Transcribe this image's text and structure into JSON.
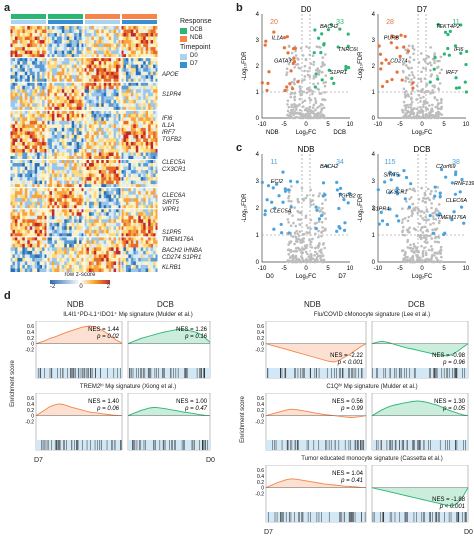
{
  "panel_a": {
    "label": "a",
    "genes": [
      "APOE",
      "S1PR4",
      "IFI6",
      "IL1A",
      "IRF7",
      "TGFB2",
      "CLEC5A",
      "CX3CR1",
      "CLEC6A",
      "SIRT5",
      "VIPR1",
      "S1PR5",
      "TMEM176A",
      "BACH2 IHNBA",
      "CD274 S1PR1",
      "KLRB1"
    ],
    "legend": {
      "response_title": "Response",
      "response_items": [
        {
          "label": "DCB",
          "color": "#2bb673"
        },
        {
          "label": "NDB",
          "color": "#f58549"
        }
      ],
      "timepoint_title": "Timepoint",
      "timepoint_items": [
        {
          "label": "D0",
          "color": "#a9d3ee"
        },
        {
          "label": "D7",
          "color": "#3a8fd0"
        }
      ],
      "zscore_title": "row z-score",
      "zscore_ticks": [
        "-2",
        "0",
        "2"
      ]
    }
  },
  "panel_b": {
    "label": "b",
    "plots": [
      {
        "title": "D0",
        "left_count": "20",
        "right_count": "33",
        "left_color": "#e8703a",
        "right_color": "#2bb673",
        "genes": [
          "BACH2",
          "IL1A",
          "TNRC6C-AS1",
          "GATA3",
          "S1PR1"
        ],
        "xlabel": "Log₂FC",
        "ylabel": "-Log₁₀FDR",
        "xticks": [
          "-10",
          "-5",
          "0",
          "5",
          "10"
        ],
        "yticks": [
          "0",
          "1",
          "2",
          "3",
          "4"
        ],
        "left_arrow": "NDB",
        "right_arrow": "DCB"
      },
      {
        "title": "D7",
        "left_count": "28",
        "right_count": "11",
        "left_color": "#e8703a",
        "right_color": "#2bb673",
        "genes": [
          "TEKT4P2",
          "PURB",
          "IFI6",
          "CD274",
          "IRF7"
        ],
        "xlabel": "Log₂FC",
        "ylabel": "-Log₁₀FDR",
        "xticks": [
          "-10",
          "-5",
          "0",
          "5",
          "10"
        ],
        "yticks": [
          "0",
          "1",
          "2",
          "3",
          "4"
        ]
      }
    ]
  },
  "panel_c": {
    "label": "c",
    "plots": [
      {
        "title": "NDB",
        "left_count": "11",
        "right_count": "34",
        "color": "#4aa3df",
        "genes": [
          "BACH2",
          "ECI2",
          "TGFB2",
          "CLEC5A"
        ],
        "xlabel": "Log₂FC",
        "ylabel": "-Log₁₀FDR",
        "xticks": [
          "-10",
          "-5",
          "0",
          "5",
          "10"
        ],
        "yticks": [
          "0",
          "1",
          "2",
          "3",
          "4"
        ],
        "left_arrow": "D0",
        "right_arrow": "D7"
      },
      {
        "title": "DCB",
        "left_count": "115",
        "right_count": "38",
        "color": "#4aa3df",
        "genes": [
          "C2orf69",
          "SIRT5",
          "RNF139-AS1",
          "CX3CR1",
          "CLEC6A",
          "S1PR4",
          "TMEM176A"
        ],
        "xlabel": "Log₂FC",
        "ylabel": "-Log₁₀FDR",
        "xticks": [
          "-10",
          "-5",
          "0",
          "5",
          "10"
        ],
        "yticks": [
          "0",
          "1",
          "2",
          "3",
          "4"
        ]
      }
    ]
  },
  "panel_d": {
    "label": "d",
    "ylabel": "Enrichment score",
    "x_left": "D7",
    "x_right": "D0",
    "left": {
      "col_titles": [
        "NDB",
        "DCB"
      ],
      "rows": [
        {
          "title": "IL4I1⁺PD-L1⁺IDO1⁺ Mφ signature (Mulder et al.)",
          "plots": [
            {
              "nes": "NES = 1.44",
              "p": "p = 0.02",
              "color": "#f58549",
              "es": [
                0,
                0.05,
                0.1,
                0.18,
                0.22,
                0.28,
                0.34,
                0.4,
                0.45,
                0.5,
                0.55,
                0.58,
                0.6,
                0.57,
                0.5,
                0.42,
                0.32,
                0.2,
                0.1,
                0.02
              ]
            },
            {
              "nes": "NES = 1.26",
              "p": "p = 0.16",
              "color": "#2bb673",
              "es": [
                0,
                0.06,
                0.12,
                0.18,
                0.22,
                0.26,
                0.3,
                0.34,
                0.38,
                0.41,
                0.44,
                0.47,
                0.5,
                0.48,
                0.45,
                0.42,
                0.38,
                0.3,
                0.18,
                0.05
              ]
            }
          ]
        },
        {
          "title": "TREM2ʰⁱ Mφ signature (Xiong et al.)",
          "plots": [
            {
              "nes": "NES = 1.40",
              "p": "p = 0.06",
              "color": "#f58549",
              "es": [
                0,
                0.1,
                0.2,
                0.3,
                0.36,
                0.4,
                0.38,
                0.33,
                0.28,
                0.24,
                0.2,
                0.16,
                0.12,
                0.1,
                0.08,
                0.06,
                0.04,
                0.02,
                0.01,
                0
              ]
            },
            {
              "nes": "NES = 1.00",
              "p": "p = 0.47",
              "color": "#2bb673",
              "es": [
                0,
                0.06,
                0.12,
                0.18,
                0.22,
                0.26,
                0.28,
                0.27,
                0.25,
                0.23,
                0.2,
                0.18,
                0.15,
                0.12,
                0.1,
                0.08,
                0.05,
                0.03,
                0.01,
                0
              ]
            }
          ]
        }
      ]
    },
    "right": {
      "col_titles": [
        "NDB",
        "DCB"
      ],
      "rows": [
        {
          "title": "Flu/COVID cMonocyte signature (Lee et al.)",
          "plots": [
            {
              "nes": "NES = -2.22",
              "p": "p < 0.001",
              "color": "#f58549",
              "es": [
                0,
                -0.05,
                -0.1,
                -0.15,
                -0.2,
                -0.25,
                -0.3,
                -0.35,
                -0.4,
                -0.45,
                -0.5,
                -0.55,
                -0.6,
                -0.62,
                -0.55,
                -0.45,
                -0.35,
                -0.22,
                -0.1,
                0
              ]
            },
            {
              "nes": "NES = -0.98",
              "p": "p = 0.96",
              "color": "#2bb673",
              "es": [
                0,
                0.05,
                0.08,
                0.05,
                0,
                -0.05,
                -0.1,
                -0.15,
                -0.18,
                -0.22,
                -0.26,
                -0.3,
                -0.34,
                -0.38,
                -0.4,
                -0.42,
                -0.35,
                -0.25,
                -0.12,
                0
              ]
            }
          ]
        },
        {
          "title": "C1Qʰⁱ Mφ signature (Mulder et al.)",
          "plots": [
            {
              "nes": "NES = 0.56",
              "p": "p = 0.99",
              "color": "#f58549",
              "es": [
                0,
                0.05,
                0.1,
                0.15,
                0.2,
                0.22,
                0.2,
                0.17,
                0.14,
                0.1,
                0.07,
                0.04,
                0.02,
                0,
                -0.02,
                -0.04,
                -0.06,
                -0.05,
                -0.03,
                0
              ]
            },
            {
              "nes": "NES = 1.30",
              "p": "p = 0.05",
              "color": "#2bb673",
              "es": [
                0,
                0.1,
                0.2,
                0.28,
                0.34,
                0.38,
                0.42,
                0.45,
                0.48,
                0.5,
                0.48,
                0.45,
                0.4,
                0.35,
                0.28,
                0.2,
                0.14,
                0.08,
                0.03,
                0
              ]
            }
          ]
        },
        {
          "title": "Tumor educated monocyte signature (Cassetta et al.)",
          "plots": [
            {
              "nes": "NES = 1.04",
              "p": "p = 0.41",
              "color": "#f58549",
              "es": [
                0,
                0.08,
                0.16,
                0.22,
                0.28,
                0.3,
                0.28,
                0.25,
                0.22,
                0.19,
                0.16,
                0.13,
                0.11,
                0.09,
                0.07,
                0.05,
                0.04,
                0.03,
                0.01,
                0
              ]
            },
            {
              "nes": "NES = -1.88",
              "p": "p < 0.001",
              "color": "#2bb673",
              "es": [
                0,
                -0.04,
                -0.08,
                -0.12,
                -0.16,
                -0.2,
                -0.24,
                -0.28,
                -0.32,
                -0.36,
                -0.4,
                -0.44,
                -0.48,
                -0.52,
                -0.56,
                -0.6,
                -0.62,
                -0.5,
                -0.3,
                0
              ]
            }
          ]
        }
      ]
    }
  }
}
